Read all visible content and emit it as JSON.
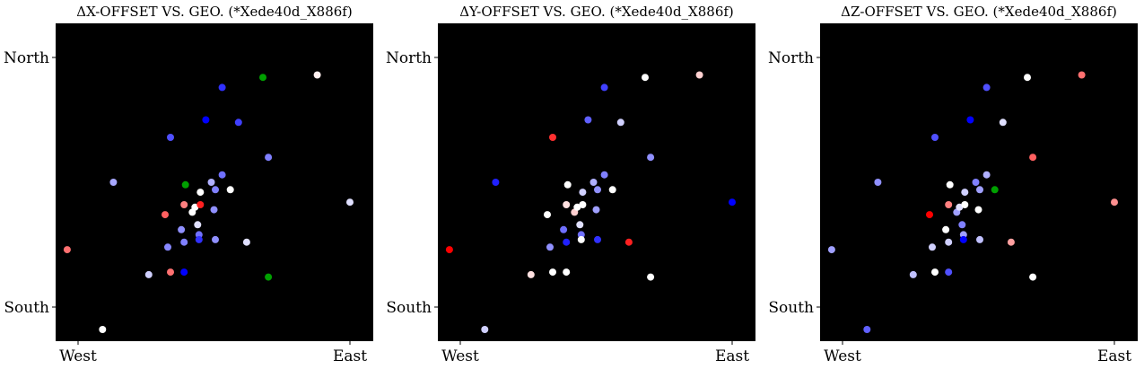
{
  "chart_data": [
    {
      "type": "scatter",
      "title": "ΔX-OFFSET VS. GEO. (*Xede40d_X886f)",
      "xlabel": "",
      "ylabel": "",
      "x_ticks": [
        "West",
        "East"
      ],
      "y_ticks": [
        "North",
        "South"
      ],
      "background": "#000000",
      "grid": false,
      "points": [
        {
          "x": -0.04,
          "y": 0.23,
          "color": "#ff7070"
        },
        {
          "x": 0.09,
          "y": -0.09,
          "color": "#ffffff"
        },
        {
          "x": 0.13,
          "y": 0.5,
          "color": "#a8a8ff"
        },
        {
          "x": 0.26,
          "y": 0.13,
          "color": "#d0d0ff"
        },
        {
          "x": 0.32,
          "y": 0.37,
          "color": "#ff6060"
        },
        {
          "x": 0.33,
          "y": 0.24,
          "color": "#8888ff"
        },
        {
          "x": 0.34,
          "y": 0.14,
          "color": "#ff7070"
        },
        {
          "x": 0.34,
          "y": 0.68,
          "color": "#5050ff"
        },
        {
          "x": 0.38,
          "y": 0.31,
          "color": "#9090ff"
        },
        {
          "x": 0.39,
          "y": 0.14,
          "color": "#0000ff"
        },
        {
          "x": 0.39,
          "y": 0.41,
          "color": "#ff8080"
        },
        {
          "x": 0.39,
          "y": 0.26,
          "color": "#8080ff"
        },
        {
          "x": 0.395,
          "y": 0.49,
          "color": "#00a000"
        },
        {
          "x": 0.42,
          "y": 0.38,
          "color": "#ffffff"
        },
        {
          "x": 0.43,
          "y": 0.4,
          "color": "#ffffff"
        },
        {
          "x": 0.44,
          "y": 0.33,
          "color": "#e0e0ff"
        },
        {
          "x": 0.445,
          "y": 0.29,
          "color": "#7070ff"
        },
        {
          "x": 0.445,
          "y": 0.27,
          "color": "#3030ff"
        },
        {
          "x": 0.45,
          "y": 0.41,
          "color": "#ff2020"
        },
        {
          "x": 0.45,
          "y": 0.46,
          "color": "#ffffff"
        },
        {
          "x": 0.47,
          "y": 0.75,
          "color": "#0000ff"
        },
        {
          "x": 0.49,
          "y": 0.5,
          "color": "#b0b0ff"
        },
        {
          "x": 0.5,
          "y": 0.39,
          "color": "#9090ff"
        },
        {
          "x": 0.505,
          "y": 0.27,
          "color": "#9090ff"
        },
        {
          "x": 0.505,
          "y": 0.47,
          "color": "#8080ff"
        },
        {
          "x": 0.53,
          "y": 0.53,
          "color": "#7070ff"
        },
        {
          "x": 0.53,
          "y": 0.88,
          "color": "#3030ff"
        },
        {
          "x": 0.56,
          "y": 0.47,
          "color": "#ffffff"
        },
        {
          "x": 0.59,
          "y": 0.74,
          "color": "#4040ff"
        },
        {
          "x": 0.62,
          "y": 0.26,
          "color": "#e0e0ff"
        },
        {
          "x": 0.68,
          "y": 0.92,
          "color": "#00a000"
        },
        {
          "x": 0.7,
          "y": 0.12,
          "color": "#00a000"
        },
        {
          "x": 0.7,
          "y": 0.6,
          "color": "#8080ff"
        },
        {
          "x": 0.88,
          "y": 0.93,
          "color": "#fff0f0"
        },
        {
          "x": 1.0,
          "y": 0.42,
          "color": "#e0e0ff"
        }
      ]
    },
    {
      "type": "scatter",
      "title": "ΔY-OFFSET VS. GEO. (*Xede40d_X886f)",
      "xlabel": "",
      "ylabel": "",
      "x_ticks": [
        "West",
        "East"
      ],
      "y_ticks": [
        "North",
        "South"
      ],
      "background": "#000000",
      "grid": false,
      "points": [
        {
          "x": -0.04,
          "y": 0.23,
          "color": "#ff0000"
        },
        {
          "x": 0.09,
          "y": -0.09,
          "color": "#d0d0ff"
        },
        {
          "x": 0.13,
          "y": 0.5,
          "color": "#2020ff"
        },
        {
          "x": 0.26,
          "y": 0.13,
          "color": "#ffe0e0"
        },
        {
          "x": 0.32,
          "y": 0.37,
          "color": "#ffffff"
        },
        {
          "x": 0.33,
          "y": 0.24,
          "color": "#9090ff"
        },
        {
          "x": 0.34,
          "y": 0.14,
          "color": "#ffffff"
        },
        {
          "x": 0.34,
          "y": 0.68,
          "color": "#ff3030"
        },
        {
          "x": 0.38,
          "y": 0.31,
          "color": "#7070ff"
        },
        {
          "x": 0.39,
          "y": 0.14,
          "color": "#ffffff"
        },
        {
          "x": 0.39,
          "y": 0.41,
          "color": "#ffe0e0"
        },
        {
          "x": 0.39,
          "y": 0.26,
          "color": "#2020ff"
        },
        {
          "x": 0.395,
          "y": 0.49,
          "color": "#ffffff"
        },
        {
          "x": 0.42,
          "y": 0.38,
          "color": "#ffd0d0"
        },
        {
          "x": 0.43,
          "y": 0.4,
          "color": "#ffffff"
        },
        {
          "x": 0.44,
          "y": 0.33,
          "color": "#e0e0ff"
        },
        {
          "x": 0.445,
          "y": 0.29,
          "color": "#7070ff"
        },
        {
          "x": 0.445,
          "y": 0.27,
          "color": "#ffffff"
        },
        {
          "x": 0.45,
          "y": 0.41,
          "color": "#ffffff"
        },
        {
          "x": 0.45,
          "y": 0.46,
          "color": "#d0d0ff"
        },
        {
          "x": 0.47,
          "y": 0.75,
          "color": "#6060ff"
        },
        {
          "x": 0.49,
          "y": 0.5,
          "color": "#b0b0ff"
        },
        {
          "x": 0.5,
          "y": 0.39,
          "color": "#a0a0ff"
        },
        {
          "x": 0.505,
          "y": 0.27,
          "color": "#3030ff"
        },
        {
          "x": 0.505,
          "y": 0.47,
          "color": "#9090ff"
        },
        {
          "x": 0.53,
          "y": 0.53,
          "color": "#8080ff"
        },
        {
          "x": 0.53,
          "y": 0.88,
          "color": "#4040ff"
        },
        {
          "x": 0.56,
          "y": 0.47,
          "color": "#ffffff"
        },
        {
          "x": 0.59,
          "y": 0.74,
          "color": "#d0d0ff"
        },
        {
          "x": 0.62,
          "y": 0.26,
          "color": "#ff2020"
        },
        {
          "x": 0.68,
          "y": 0.92,
          "color": "#ffffff"
        },
        {
          "x": 0.7,
          "y": 0.12,
          "color": "#ffffff"
        },
        {
          "x": 0.7,
          "y": 0.6,
          "color": "#9090ff"
        },
        {
          "x": 0.88,
          "y": 0.93,
          "color": "#ffd0d0"
        },
        {
          "x": 1.0,
          "y": 0.42,
          "color": "#0000ff"
        }
      ]
    },
    {
      "type": "scatter",
      "title": "ΔZ-OFFSET VS. GEO. (*Xede40d_X886f)",
      "xlabel": "",
      "ylabel": "",
      "x_ticks": [
        "West",
        "East"
      ],
      "y_ticks": [
        "North",
        "South"
      ],
      "background": "#000000",
      "grid": false,
      "points": [
        {
          "x": -0.04,
          "y": 0.23,
          "color": "#a0a0ff"
        },
        {
          "x": 0.09,
          "y": -0.09,
          "color": "#6060ff"
        },
        {
          "x": 0.13,
          "y": 0.5,
          "color": "#9090ff"
        },
        {
          "x": 0.26,
          "y": 0.13,
          "color": "#c0c0ff"
        },
        {
          "x": 0.32,
          "y": 0.37,
          "color": "#ff0000"
        },
        {
          "x": 0.33,
          "y": 0.24,
          "color": "#d0d0ff"
        },
        {
          "x": 0.34,
          "y": 0.14,
          "color": "#ffffff"
        },
        {
          "x": 0.34,
          "y": 0.68,
          "color": "#5050ff"
        },
        {
          "x": 0.38,
          "y": 0.31,
          "color": "#ffffff"
        },
        {
          "x": 0.39,
          "y": 0.14,
          "color": "#5050ff"
        },
        {
          "x": 0.39,
          "y": 0.41,
          "color": "#ff8080"
        },
        {
          "x": 0.39,
          "y": 0.26,
          "color": "#d0d0ff"
        },
        {
          "x": 0.395,
          "y": 0.49,
          "color": "#ffffff"
        },
        {
          "x": 0.42,
          "y": 0.38,
          "color": "#a0a0ff"
        },
        {
          "x": 0.43,
          "y": 0.4,
          "color": "#e0e0ff"
        },
        {
          "x": 0.44,
          "y": 0.33,
          "color": "#8080ff"
        },
        {
          "x": 0.445,
          "y": 0.29,
          "color": "#a0a0ff"
        },
        {
          "x": 0.445,
          "y": 0.27,
          "color": "#0000ff"
        },
        {
          "x": 0.45,
          "y": 0.41,
          "color": "#ffffff"
        },
        {
          "x": 0.45,
          "y": 0.46,
          "color": "#d0d0ff"
        },
        {
          "x": 0.47,
          "y": 0.75,
          "color": "#0000ff"
        },
        {
          "x": 0.49,
          "y": 0.5,
          "color": "#8080ff"
        },
        {
          "x": 0.5,
          "y": 0.39,
          "color": "#ffffff"
        },
        {
          "x": 0.505,
          "y": 0.27,
          "color": "#c0c0ff"
        },
        {
          "x": 0.505,
          "y": 0.47,
          "color": "#a0a0ff"
        },
        {
          "x": 0.53,
          "y": 0.53,
          "color": "#b0b0ff"
        },
        {
          "x": 0.53,
          "y": 0.88,
          "color": "#5050ff"
        },
        {
          "x": 0.56,
          "y": 0.47,
          "color": "#00a000"
        },
        {
          "x": 0.59,
          "y": 0.74,
          "color": "#e0e0ff"
        },
        {
          "x": 0.62,
          "y": 0.26,
          "color": "#ffa0a0"
        },
        {
          "x": 0.68,
          "y": 0.92,
          "color": "#ffffff"
        },
        {
          "x": 0.7,
          "y": 0.12,
          "color": "#ffffff"
        },
        {
          "x": 0.7,
          "y": 0.6,
          "color": "#ff6060"
        },
        {
          "x": 0.88,
          "y": 0.93,
          "color": "#ff7070"
        },
        {
          "x": 1.0,
          "y": 0.42,
          "color": "#ff9090"
        }
      ]
    }
  ]
}
